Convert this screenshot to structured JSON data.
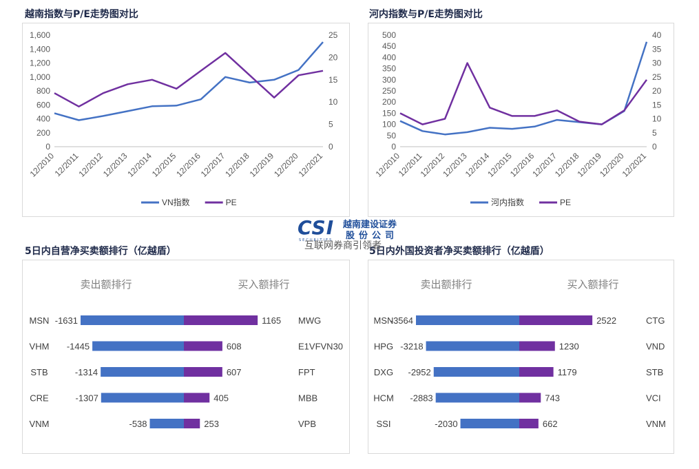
{
  "titles": {
    "vn": "越南指数与P/E走势图对比",
    "hn": "河内指数与P/E走势图对比",
    "self": "5日内自营净买卖额排行（亿越盾）",
    "foreign": "5日内外国投资者净买卖额排行（亿越盾）"
  },
  "logo": {
    "mark": "CSI",
    "name_top": "越南建设证券",
    "name_bottom": "股份公司",
    "sub": "SECURITIES"
  },
  "watermark": "互联网券商引领者",
  "colors": {
    "blue": "#4472c4",
    "purple": "#7030a0"
  },
  "chart_data": [
    {
      "type": "line",
      "title": "越南指数与P/E走势图对比",
      "x": [
        "12/2010",
        "12/2011",
        "12/2012",
        "12/2013",
        "12/2014",
        "12/2015",
        "12/2016",
        "12/2017",
        "12/2018",
        "12/2019",
        "12/2020",
        "12/2021"
      ],
      "left_axis": {
        "ticks": [
          "0",
          "200",
          "400",
          "600",
          "800",
          "1,000",
          "1,200",
          "1,400",
          "1,600"
        ],
        "range": [
          0,
          1600
        ]
      },
      "right_axis": {
        "ticks": [
          "0",
          "5",
          "10",
          "15",
          "20",
          "25"
        ],
        "range": [
          0,
          25
        ]
      },
      "series": [
        {
          "name": "VN指数",
          "axis": "left",
          "color": "#4472c4",
          "values": [
            480,
            380,
            440,
            510,
            580,
            590,
            680,
            1000,
            920,
            960,
            1100,
            1500
          ]
        },
        {
          "name": "PE",
          "axis": "right",
          "color": "#7030a0",
          "values": [
            12,
            9,
            12,
            14,
            15,
            13,
            17,
            21,
            16,
            11,
            16,
            17
          ]
        }
      ],
      "legend": "bottom"
    },
    {
      "type": "line",
      "title": "河内指数与P/E走势图对比",
      "x": [
        "12/2010",
        "12/2011",
        "12/2012",
        "12/2013",
        "12/2014",
        "12/2015",
        "12/2016",
        "12/2017",
        "12/2018",
        "12/2019",
        "12/2020",
        "12/2021"
      ],
      "left_axis": {
        "ticks": [
          "0",
          "50",
          "100",
          "150",
          "200",
          "250",
          "300",
          "350",
          "400",
          "450",
          "500"
        ],
        "range": [
          0,
          500
        ]
      },
      "right_axis": {
        "ticks": [
          "0",
          "5",
          "10",
          "15",
          "20",
          "25",
          "30",
          "35",
          "40"
        ],
        "range": [
          0,
          40
        ]
      },
      "series": [
        {
          "name": "河内指数",
          "axis": "left",
          "color": "#4472c4",
          "values": [
            115,
            70,
            55,
            65,
            85,
            80,
            90,
            120,
            110,
            100,
            160,
            470
          ]
        },
        {
          "name": "PE",
          "axis": "right",
          "color": "#7030a0",
          "values": [
            12,
            8,
            10,
            30,
            14,
            11,
            11,
            13,
            9,
            8,
            13,
            24
          ]
        }
      ],
      "legend": "bottom"
    },
    {
      "type": "bar",
      "title": "5日内自营净买卖额排行（亿越盾）",
      "sell_header": "卖出额排行",
      "buy_header": "买入额排行",
      "sell": [
        {
          "name": "MSN",
          "value": -1631,
          "label": "-1631"
        },
        {
          "name": "VHM",
          "value": -1445,
          "label": "-1445"
        },
        {
          "name": "STB",
          "value": -1314,
          "label": "-1314"
        },
        {
          "name": "CRE",
          "value": -1307,
          "label": "-1307"
        },
        {
          "name": "VNM",
          "value": -538,
          "label": "-538"
        }
      ],
      "buy": [
        {
          "name": "MWG",
          "value": 1165,
          "label": "1165"
        },
        {
          "name": "E1VFVN30",
          "value": 608,
          "label": "608"
        },
        {
          "name": "FPT",
          "value": 607,
          "label": "607"
        },
        {
          "name": "MBB",
          "value": 405,
          "label": "405"
        },
        {
          "name": "VPB",
          "value": 253,
          "label": "253"
        }
      ],
      "max": 1631
    },
    {
      "type": "bar",
      "title": "5日内外国投资者净买卖额排行（亿越盾）",
      "sell_header": "卖出额排行",
      "buy_header": "买入额排行",
      "sell": [
        {
          "name": "MSN",
          "value": -3564,
          "label": "-3564"
        },
        {
          "name": "HPG",
          "value": -3218,
          "label": "-3218"
        },
        {
          "name": "DXG",
          "value": -2952,
          "label": "-2952"
        },
        {
          "name": "HCM",
          "value": -2883,
          "label": "-2883"
        },
        {
          "name": "SSI",
          "value": -2030,
          "label": "-2030"
        }
      ],
      "buy": [
        {
          "name": "CTG",
          "value": 2522,
          "label": "2522"
        },
        {
          "name": "VND",
          "value": 1230,
          "label": "1230"
        },
        {
          "name": "STB",
          "value": 1179,
          "label": "1179"
        },
        {
          "name": "VCI",
          "value": 743,
          "label": "743"
        },
        {
          "name": "VNM",
          "value": 662,
          "label": "662"
        }
      ],
      "max": 3564
    }
  ]
}
